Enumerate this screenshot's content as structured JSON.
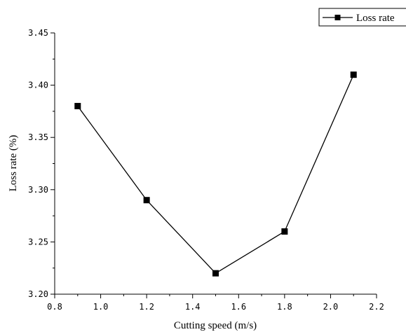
{
  "chart_data": {
    "type": "line",
    "title": "",
    "xlabel": "Cutting speed (m/s)",
    "ylabel": "Loss rate (%)",
    "xlim": [
      0.8,
      2.2
    ],
    "ylim": [
      3.2,
      3.45
    ],
    "xticks": [
      "0.8",
      "1.0",
      "1.2",
      "1.4",
      "1.6",
      "1.8",
      "2.0",
      "2.2"
    ],
    "yticks": [
      "3.20",
      "3.25",
      "3.30",
      "3.35",
      "3.40",
      "3.45"
    ],
    "grid": false,
    "legend_position": "top-right",
    "series": [
      {
        "name": "Loss rate",
        "color": "#000000",
        "marker": "square",
        "x": [
          0.9,
          1.2,
          1.5,
          1.8,
          2.1
        ],
        "y": [
          3.38,
          3.29,
          3.22,
          3.26,
          3.41
        ]
      }
    ]
  }
}
